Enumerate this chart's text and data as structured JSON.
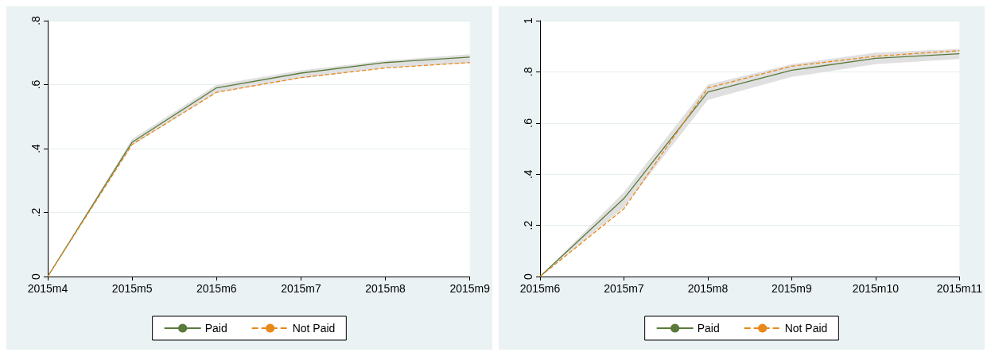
{
  "chart_data": [
    {
      "type": "line",
      "categories": [
        "2015m4",
        "2015m5",
        "2015m6",
        "2015m7",
        "2015m8",
        "2015m9"
      ],
      "ylim": [
        0,
        0.8
      ],
      "yticks": [
        {
          "value": 0,
          "label": "0"
        },
        {
          "value": 0.2,
          "label": ".2"
        },
        {
          "value": 0.4,
          "label": ".4"
        },
        {
          "value": 0.6,
          "label": ".6"
        },
        {
          "value": 0.8,
          "label": ".8"
        }
      ],
      "grid": "y",
      "legend": "bottom",
      "series": [
        {
          "name": "Paid",
          "color": "#5a7a3a",
          "line_style": "solid",
          "values": [
            0,
            0.42,
            0.59,
            0.636,
            0.669,
            0.686
          ],
          "lower": [
            0,
            0.41,
            0.575,
            0.62,
            0.652,
            0.668
          ],
          "upper": [
            0,
            0.43,
            0.6,
            0.645,
            0.675,
            0.695
          ]
        },
        {
          "name": "Not Paid",
          "color": "#e8891c",
          "line_style": "dashed",
          "values": [
            0,
            0.413,
            0.576,
            0.622,
            0.652,
            0.669
          ]
        }
      ]
    },
    {
      "type": "line",
      "categories": [
        "2015m6",
        "2015m7",
        "2015m8",
        "2015m9",
        "2015m10",
        "2015m11"
      ],
      "ylim": [
        0,
        1
      ],
      "yticks": [
        {
          "value": 0,
          "label": "0"
        },
        {
          "value": 0.2,
          "label": ".2"
        },
        {
          "value": 0.4,
          "label": ".4"
        },
        {
          "value": 0.6,
          "label": ".6"
        },
        {
          "value": 0.8,
          "label": ".8"
        },
        {
          "value": 1,
          "label": "1"
        }
      ],
      "grid": "y",
      "legend": "bottom",
      "series": [
        {
          "name": "Paid",
          "color": "#5a7a3a",
          "line_style": "solid",
          "values": [
            0,
            0.305,
            0.721,
            0.806,
            0.853,
            0.871
          ],
          "lower": [
            0,
            0.27,
            0.69,
            0.78,
            0.83,
            0.85
          ],
          "upper": [
            0,
            0.33,
            0.75,
            0.83,
            0.875,
            0.89
          ]
        },
        {
          "name": "Not Paid",
          "color": "#e8891c",
          "line_style": "dashed",
          "values": [
            0,
            0.265,
            0.737,
            0.822,
            0.861,
            0.883
          ]
        }
      ]
    }
  ]
}
